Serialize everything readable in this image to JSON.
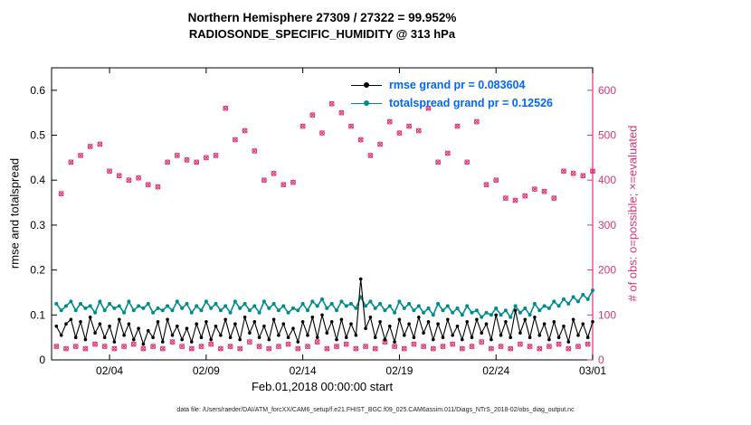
{
  "header": {
    "title_line1": "Northern Hemisphere 27309 / 27322 = 99.952%",
    "title_line2": "RADIOSONDE_SPECIFIC_HUMIDITY @ 313 hPa"
  },
  "legend": {
    "text_color": "#0066ff",
    "items": [
      {
        "label": "rmse grand pr = 0.083604",
        "color": "#000000"
      },
      {
        "label": "totalspread grand pr = 0.12526",
        "color": "#008b8b"
      }
    ]
  },
  "caption": "data file: /Users/raeder/DAI/ATM_forcXX/CAM6_setup/f.e21.FHIST_BGC.f09_025.CAM6assim.011/Diags_NTrS_2018-02/obs_diag_output.nc",
  "chart_data": {
    "type": "line",
    "title": "Northern Hemisphere 27309 / 27322 = 99.952% — RADIOSONDE_SPECIFIC_HUMIDITY @ 313 hPa",
    "x_axis": {
      "label": "Feb.01,2018 00:00:00 start",
      "range_days": [
        1,
        29
      ],
      "tick_days": [
        4,
        9,
        14,
        19,
        24,
        29
      ],
      "tick_labels": [
        "02/04",
        "02/09",
        "02/14",
        "02/19",
        "02/24",
        "03/01"
      ]
    },
    "y_left": {
      "label": "rmse and totalspread",
      "range": [
        0,
        0.65
      ],
      "ticks": [
        0,
        0.1,
        0.2,
        0.3,
        0.4,
        0.5,
        0.6
      ],
      "color": "#000000"
    },
    "y_right": {
      "label": "# of obs: o=possible; ×=evaluated",
      "range": [
        0,
        650
      ],
      "ticks": [
        0,
        100,
        200,
        300,
        400,
        500,
        600
      ],
      "color": "#dd3377"
    },
    "grid": false,
    "legend_position": "upper-center-right, no box",
    "x_days": [
      1.25,
      1.5,
      1.75,
      2,
      2.25,
      2.5,
      2.75,
      3,
      3.25,
      3.5,
      3.75,
      4,
      4.25,
      4.5,
      4.75,
      5,
      5.25,
      5.5,
      5.75,
      6,
      6.25,
      6.5,
      6.75,
      7,
      7.25,
      7.5,
      7.75,
      8,
      8.25,
      8.5,
      8.75,
      9,
      9.25,
      9.5,
      9.75,
      10,
      10.25,
      10.5,
      10.75,
      11,
      11.25,
      11.5,
      11.75,
      12,
      12.25,
      12.5,
      12.75,
      13,
      13.25,
      13.5,
      13.75,
      14,
      14.25,
      14.5,
      14.75,
      15,
      15.25,
      15.5,
      15.75,
      16,
      16.25,
      16.5,
      16.75,
      17,
      17.25,
      17.5,
      17.75,
      18,
      18.25,
      18.5,
      18.75,
      19,
      19.25,
      19.5,
      19.75,
      20,
      20.25,
      20.5,
      20.75,
      21,
      21.25,
      21.5,
      21.75,
      22,
      22.25,
      22.5,
      22.75,
      23,
      23.25,
      23.5,
      23.75,
      24,
      24.25,
      24.5,
      24.75,
      25,
      25.25,
      25.5,
      25.75,
      26,
      26.25,
      26.5,
      26.75,
      27,
      27.25,
      27.5,
      27.75,
      28,
      28.25,
      28.5,
      28.75,
      29
    ],
    "series": [
      {
        "name": "rmse",
        "axis": "left",
        "color": "#000000",
        "marker": "filled-circle",
        "line": true,
        "grand_mean": 0.083604,
        "values": [
          0.075,
          0.055,
          0.08,
          0.09,
          0.05,
          0.085,
          0.045,
          0.095,
          0.06,
          0.08,
          0.05,
          0.075,
          0.04,
          0.09,
          0.055,
          0.08,
          0.045,
          0.07,
          0.035,
          0.065,
          0.05,
          0.085,
          0.04,
          0.09,
          0.055,
          0.075,
          0.045,
          0.07,
          0.04,
          0.08,
          0.05,
          0.085,
          0.045,
          0.075,
          0.055,
          0.09,
          0.05,
          0.08,
          0.045,
          0.095,
          0.06,
          0.085,
          0.05,
          0.075,
          0.045,
          0.09,
          0.055,
          0.08,
          0.05,
          0.07,
          0.04,
          0.085,
          0.055,
          0.095,
          0.05,
          0.1,
          0.06,
          0.085,
          0.045,
          0.09,
          0.05,
          0.08,
          0.055,
          0.18,
          0.07,
          0.095,
          0.05,
          0.085,
          0.045,
          0.075,
          0.04,
          0.09,
          0.055,
          0.08,
          0.05,
          0.095,
          0.06,
          0.085,
          0.045,
          0.08,
          0.05,
          0.09,
          0.055,
          0.075,
          0.045,
          0.085,
          0.05,
          0.09,
          0.06,
          0.08,
          0.045,
          0.1,
          0.055,
          0.085,
          0.05,
          0.11,
          0.06,
          0.09,
          0.05,
          0.095,
          0.055,
          0.08,
          0.045,
          0.085,
          0.05,
          0.075,
          0.04,
          0.09,
          0.055,
          0.08,
          0.05,
          0.085
        ]
      },
      {
        "name": "totalspread",
        "axis": "left",
        "color": "#008b8b",
        "marker": "filled-circle",
        "line": true,
        "grand_mean": 0.12526,
        "values": [
          0.125,
          0.11,
          0.12,
          0.13,
          0.11,
          0.125,
          0.115,
          0.12,
          0.105,
          0.13,
          0.11,
          0.125,
          0.115,
          0.12,
          0.105,
          0.13,
          0.11,
          0.12,
          0.115,
          0.125,
          0.105,
          0.115,
          0.11,
          0.12,
          0.11,
          0.13,
          0.115,
          0.125,
          0.105,
          0.12,
          0.11,
          0.13,
          0.115,
          0.125,
          0.11,
          0.12,
          0.105,
          0.13,
          0.115,
          0.125,
          0.11,
          0.12,
          0.105,
          0.13,
          0.115,
          0.125,
          0.11,
          0.12,
          0.105,
          0.115,
          0.11,
          0.125,
          0.11,
          0.13,
          0.12,
          0.135,
          0.115,
          0.125,
          0.11,
          0.13,
          0.12,
          0.125,
          0.115,
          0.14,
          0.12,
          0.13,
          0.115,
          0.125,
          0.11,
          0.12,
          0.105,
          0.13,
          0.115,
          0.125,
          0.11,
          0.12,
          0.105,
          0.115,
          0.1,
          0.125,
          0.11,
          0.12,
          0.105,
          0.115,
          0.1,
          0.12,
          0.105,
          0.11,
          0.095,
          0.105,
          0.1,
          0.115,
          0.1,
          0.11,
          0.095,
          0.12,
          0.105,
          0.115,
          0.1,
          0.125,
          0.11,
          0.12,
          0.115,
          0.13,
          0.12,
          0.135,
          0.125,
          0.14,
          0.13,
          0.145,
          0.135,
          0.155
        ]
      },
      {
        "name": "num_obs",
        "axis": "right",
        "color": "#dd3377",
        "marker": "circle-and-x",
        "line": false,
        "note": "o=possible and ×=evaluated markers overlap (99.952% evaluated); high values at 00Z/12Z, low values at 06Z/18Z",
        "values": [
          30,
          370,
          25,
          440,
          30,
          455,
          25,
          475,
          35,
          480,
          30,
          420,
          25,
          410,
          30,
          400,
          35,
          405,
          25,
          390,
          30,
          385,
          25,
          440,
          40,
          455,
          30,
          445,
          25,
          440,
          30,
          450,
          35,
          455,
          25,
          560,
          30,
          490,
          25,
          510,
          40,
          465,
          30,
          400,
          25,
          415,
          30,
          390,
          35,
          395,
          25,
          520,
          30,
          545,
          40,
          505,
          25,
          570,
          30,
          550,
          35,
          520,
          25,
          490,
          30,
          455,
          25,
          480,
          40,
          530,
          30,
          505,
          25,
          520,
          35,
          510,
          30,
          560,
          25,
          440,
          30,
          460,
          35,
          520,
          25,
          440,
          30,
          530,
          40,
          390,
          25,
          400,
          30,
          360,
          25,
          355,
          35,
          365,
          30,
          380,
          25,
          375,
          30,
          360,
          35,
          420,
          25,
          415,
          30,
          410,
          35,
          420
        ]
      }
    ]
  }
}
